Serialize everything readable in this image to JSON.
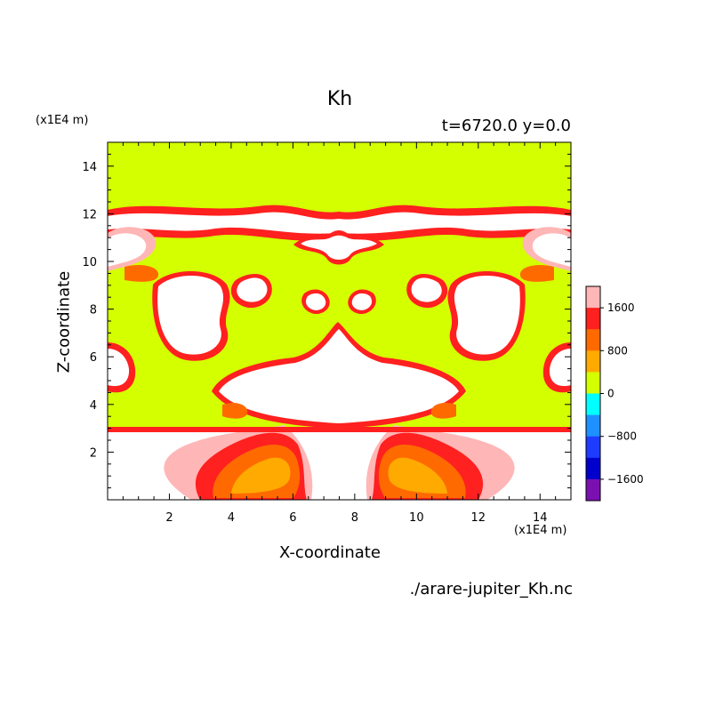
{
  "chart_data": {
    "type": "heatmap",
    "title": "Kh",
    "annotation": "t=6720.0 y=0.0",
    "source_file": "./arare-jupiter_Kh.nc",
    "xlabel": "X-coordinate",
    "ylabel": "Z-coordinate",
    "x_unit": "(x1E4 m)",
    "y_unit": "(x1E4 m)",
    "xlim": [
      0,
      15
    ],
    "ylim": [
      0,
      15
    ],
    "x_ticks": [
      2,
      4,
      6,
      8,
      10,
      12,
      14
    ],
    "y_ticks": [
      2,
      4,
      6,
      8,
      10,
      12,
      14
    ],
    "colorbar": {
      "tick_values": [
        1600,
        800,
        0,
        -800,
        -1600
      ],
      "tick_labels": [
        "1600",
        "800",
        "0",
        "−800",
        "−1600"
      ],
      "colors_top_to_bottom": [
        "#ffb6b6",
        "#ff2020",
        "#ff6a00",
        "#ffaa00",
        "#d4ff00",
        "#00ffff",
        "#1e90ff",
        "#1e3cff",
        "#0000cc",
        "#7a10b0"
      ]
    },
    "background_level_color": "#d4ff00"
  }
}
